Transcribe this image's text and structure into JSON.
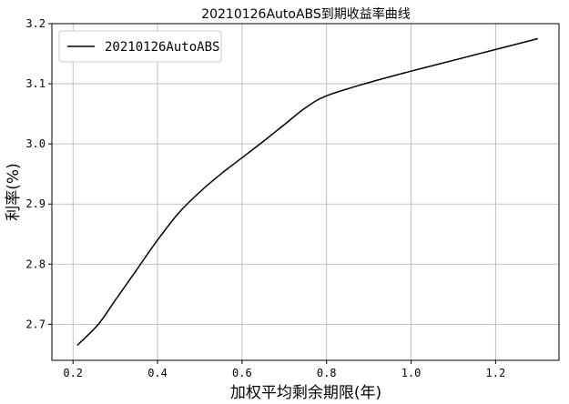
{
  "chart_data": {
    "type": "line",
    "title": "20210126AutoABS到期收益率曲线",
    "xlabel": "加权平均剩余期限(年)",
    "ylabel": "利率(%)",
    "xlim": [
      0.15,
      1.35
    ],
    "ylim": [
      2.64,
      3.2
    ],
    "xticks": [
      0.2,
      0.4,
      0.6,
      0.8,
      1.0,
      1.2
    ],
    "xtick_labels": [
      "0.2",
      "0.4",
      "0.6",
      "0.8",
      "1.0",
      "1.2"
    ],
    "yticks": [
      2.7,
      2.8,
      2.9,
      3.0,
      3.1,
      3.2
    ],
    "ytick_labels": [
      "2.7",
      "2.8",
      "2.9",
      "3.0",
      "3.1",
      "3.2"
    ],
    "grid": true,
    "legend_position": "top-left",
    "series": [
      {
        "name": "20210126AutoABS",
        "color": "#000000",
        "x": [
          0.21,
          0.26,
          0.3,
          0.35,
          0.4,
          0.45,
          0.5,
          0.55,
          0.6,
          0.65,
          0.7,
          0.75,
          0.8,
          0.9,
          1.0,
          1.1,
          1.2,
          1.3
        ],
        "y": [
          2.665,
          2.7,
          2.74,
          2.79,
          2.84,
          2.885,
          2.92,
          2.95,
          2.977,
          3.004,
          3.032,
          3.06,
          3.08,
          3.102,
          3.121,
          3.139,
          3.157,
          3.175
        ]
      }
    ]
  }
}
